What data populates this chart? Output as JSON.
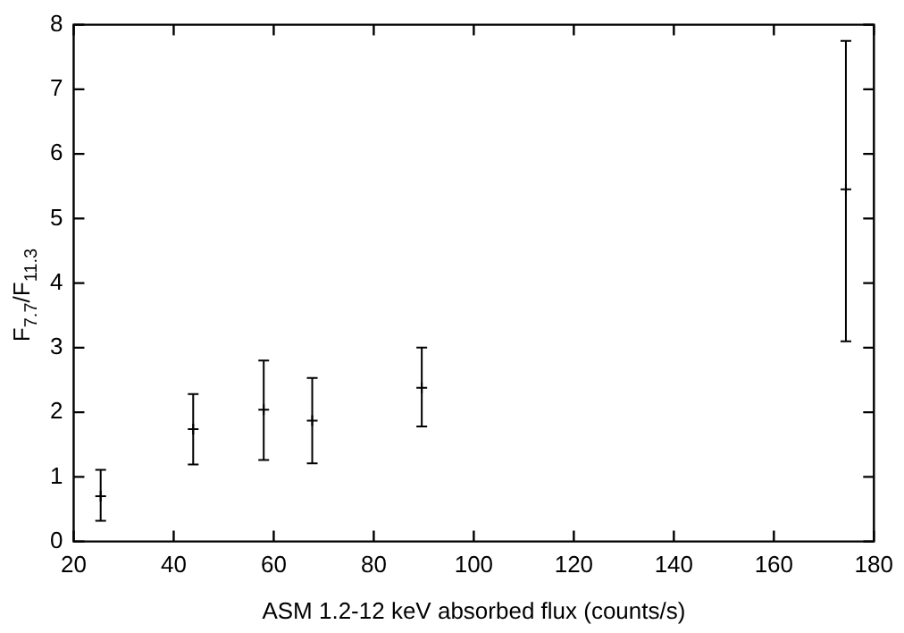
{
  "chart_data": {
    "type": "scatter",
    "xlabel": "ASM 1.2-12 keV absorbed flux (counts/s)",
    "ylabel": "F$_{7.7}$/F$_{11.3}$",
    "x": [
      25.4,
      43.9,
      58.0,
      67.7,
      89.6,
      174.4
    ],
    "values": [
      0.7,
      1.74,
      2.04,
      1.87,
      2.38,
      5.45
    ],
    "errors": [
      [
        0.32,
        1.11
      ],
      [
        1.19,
        2.28
      ],
      [
        1.26,
        2.8
      ],
      [
        1.21,
        2.53
      ],
      [
        1.78,
        3.0
      ],
      [
        3.1,
        7.75
      ]
    ],
    "color": "#000000",
    "xlim": [
      20,
      180
    ],
    "xticks": [
      20,
      40,
      60,
      80,
      100,
      120,
      140,
      160,
      180
    ],
    "ylim": [
      0,
      8
    ],
    "yticks": [
      0,
      1,
      2,
      3,
      4,
      5,
      6,
      7,
      8
    ],
    "grid": false,
    "legend": false,
    "marker": "cross"
  }
}
